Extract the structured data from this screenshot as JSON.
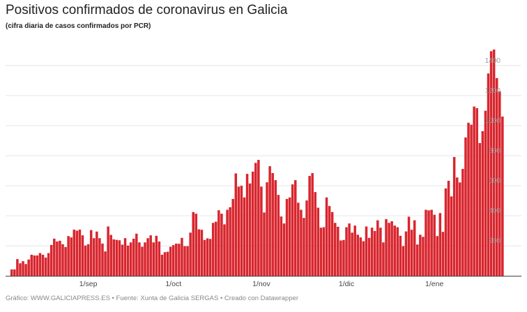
{
  "title": "Positivos confirmados de coronavirus en Galicia",
  "subtitle": "(cifra diaria de casos confirmados por PCR)",
  "footer": "Gráfico: WWW.GALICIAPRESS.ES • Fuente: Xunta de Galicia SERGAS • Creado con Datawrapper",
  "chart_data": {
    "type": "bar",
    "title": "Positivos confirmados de coronavirus en Galicia",
    "subtitle": "(cifra diaria de casos confirmados por PCR)",
    "bar_color": "#d8262e",
    "grid": true,
    "y_axis_position": "right",
    "ylim": [
      0,
      1550
    ],
    "y_ticks": [
      "200",
      "400",
      "600",
      "800",
      "1000",
      "1200",
      "1400"
    ],
    "x_ticks": [
      "1/sep",
      "1/oct",
      "1/nov",
      "1/dic",
      "1/ene"
    ],
    "categories": [
      "5/ago",
      "6/ago",
      "7/ago",
      "8/ago",
      "9/ago",
      "10/ago",
      "11/ago",
      "12/ago",
      "13/ago",
      "14/ago",
      "15/ago",
      "16/ago",
      "17/ago",
      "18/ago",
      "19/ago",
      "20/ago",
      "21/ago",
      "22/ago",
      "23/ago",
      "24/ago",
      "25/ago",
      "26/ago",
      "27/ago",
      "28/ago",
      "29/ago",
      "30/ago",
      "31/ago",
      "1/sep",
      "2/sep",
      "3/sep",
      "4/sep",
      "5/sep",
      "6/sep",
      "7/sep",
      "8/sep",
      "9/sep",
      "10/sep",
      "11/sep",
      "12/sep",
      "13/sep",
      "14/sep",
      "15/sep",
      "16/sep",
      "17/sep",
      "18/sep",
      "19/sep",
      "20/sep",
      "21/sep",
      "22/sep",
      "23/sep",
      "24/sep",
      "25/sep",
      "26/sep",
      "27/sep",
      "28/sep",
      "29/sep",
      "30/sep",
      "1/oct",
      "2/oct",
      "3/oct",
      "4/oct",
      "5/oct",
      "6/oct",
      "7/oct",
      "8/oct",
      "9/oct",
      "10/oct",
      "11/oct",
      "12/oct",
      "13/oct",
      "14/oct",
      "15/oct",
      "16/oct",
      "17/oct",
      "18/oct",
      "19/oct",
      "20/oct",
      "21/oct",
      "22/oct",
      "23/oct",
      "24/oct",
      "25/oct",
      "26/oct",
      "27/oct",
      "28/oct",
      "29/oct",
      "30/oct",
      "31/oct",
      "1/nov",
      "2/nov",
      "3/nov",
      "4/nov",
      "5/nov",
      "6/nov",
      "7/nov",
      "8/nov",
      "9/nov",
      "10/nov",
      "11/nov",
      "12/nov",
      "13/nov",
      "14/nov",
      "15/nov",
      "16/nov",
      "17/nov",
      "18/nov",
      "19/nov",
      "20/nov",
      "21/nov",
      "22/nov",
      "23/nov",
      "24/nov",
      "25/nov",
      "26/nov",
      "27/nov",
      "28/nov",
      "29/nov",
      "30/nov",
      "1/dic",
      "2/dic",
      "3/dic",
      "4/dic",
      "5/dic",
      "6/dic",
      "7/dic",
      "8/dic",
      "9/dic",
      "10/dic",
      "11/dic",
      "12/dic",
      "13/dic",
      "14/dic",
      "15/dic",
      "16/dic",
      "17/dic",
      "18/dic",
      "19/dic",
      "20/dic",
      "21/dic",
      "22/dic",
      "23/dic",
      "24/dic",
      "25/dic",
      "26/dic",
      "27/dic",
      "28/dic",
      "29/dic",
      "30/dic",
      "31/dic",
      "1/ene",
      "2/ene",
      "3/ene",
      "4/ene",
      "5/ene",
      "6/ene",
      "7/ene",
      "8/ene",
      "9/ene",
      "10/ene",
      "11/ene",
      "12/ene",
      "13/ene",
      "14/ene",
      "15/ene",
      "16/ene",
      "17/ene",
      "18/ene",
      "19/ene",
      "20/ene",
      "21/ene",
      "22/ene",
      "23/ene",
      "24/ene",
      "25/ene"
    ],
    "values": [
      43,
      43,
      112,
      84,
      98,
      79,
      109,
      141,
      136,
      136,
      152,
      141,
      122,
      152,
      206,
      248,
      229,
      234,
      211,
      192,
      265,
      256,
      308,
      301,
      308,
      270,
      202,
      211,
      305,
      251,
      295,
      251,
      215,
      163,
      329,
      273,
      243,
      240,
      237,
      208,
      251,
      202,
      223,
      248,
      281,
      223,
      194,
      223,
      251,
      270,
      223,
      267,
      229,
      141,
      158,
      161,
      194,
      205,
      215,
      214,
      253,
      198,
      198,
      288,
      425,
      414,
      310,
      307,
      239,
      250,
      246,
      353,
      361,
      437,
      414,
      343,
      440,
      457,
      512,
      682,
      594,
      600,
      522,
      679,
      615,
      694,
      752,
      772,
      594,
      422,
      623,
      730,
      684,
      637,
      539,
      395,
      349,
      512,
      522,
      609,
      637,
      487,
      440,
      386,
      502,
      665,
      684,
      558,
      454,
      321,
      324,
      522,
      465,
      425,
      353,
      327,
      236,
      239,
      324,
      349,
      288,
      335,
      274,
      256,
      231,
      329,
      253,
      321,
      299,
      370,
      321,
      223,
      378,
      353,
      364,
      335,
      324,
      267,
      198,
      296,
      394,
      307,
      370,
      209,
      274,
      260,
      440,
      436,
      440,
      407,
      265,
      418,
      293,
      582,
      633,
      529,
      791,
      655,
      622,
      712,
      921,
      1019,
      1006,
      1127,
      1116,
      884,
      963,
      1099,
      1347,
      1495,
      1506,
      1316,
      1228,
      1060
    ]
  }
}
